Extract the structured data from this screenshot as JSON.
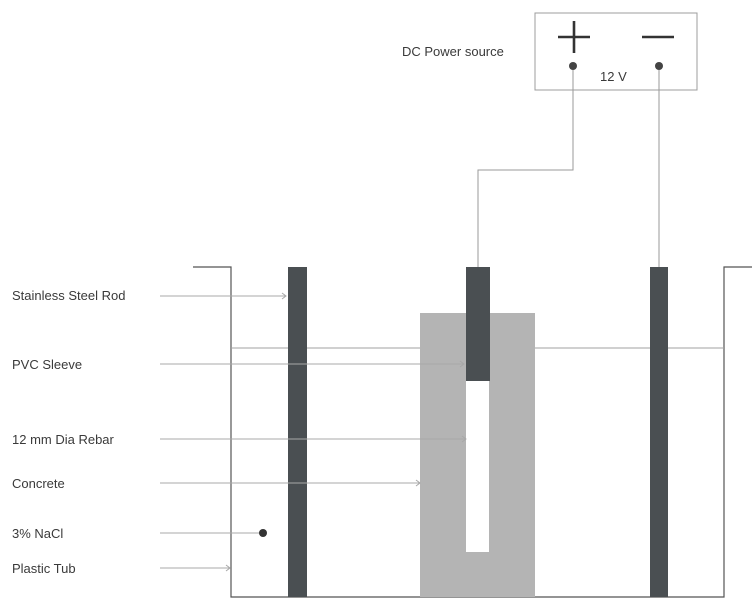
{
  "power_source": {
    "label": "DC Power source",
    "voltage": "12 V",
    "positive_symbol": "plus-icon",
    "negative_symbol": "minus-icon"
  },
  "labels": {
    "stainless_steel_rod": "Stainless Steel Rod",
    "pvc_sleeve": "PVC Sleeve",
    "rebar": "12 mm Dia Rebar",
    "concrete": "Concrete",
    "nacl": "3% NaCl",
    "plastic_tub": "Plastic Tub"
  },
  "colors": {
    "rod": "#4a4f52",
    "concrete": "#b4b4b4",
    "rebar": "#ffffff",
    "wire": "#9a9a9a"
  }
}
